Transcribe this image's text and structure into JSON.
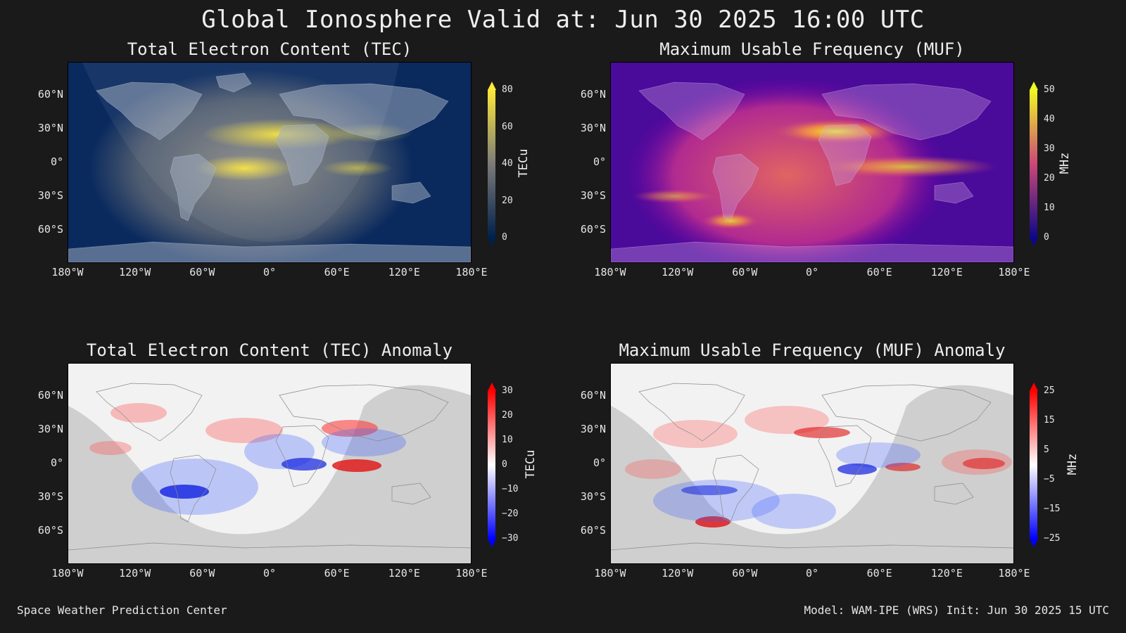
{
  "title": "Global Ionosphere Valid at: Jun 30 2025 16:00 UTC",
  "lat_ticks": [
    "60°N",
    "30°N",
    "0°",
    "30°S",
    "60°S"
  ],
  "lon_ticks": [
    "180°W",
    "120°W",
    "60°W",
    "0°",
    "60°E",
    "120°E",
    "180°E"
  ],
  "panels": {
    "tec": {
      "title": "Total Electron Content (TEC)",
      "unit": "TECu",
      "ticks": [
        "80",
        "60",
        "40",
        "20",
        "0"
      ],
      "range": [
        0,
        80
      ],
      "colors": {
        "low": "#00204c",
        "mid": "#7c7b78",
        "high": "#fee838"
      }
    },
    "muf": {
      "title": "Maximum Usable Frequency (MUF)",
      "unit": "MHz",
      "ticks": [
        "50",
        "40",
        "30",
        "20",
        "10",
        "0"
      ],
      "range": [
        0,
        50
      ],
      "colors": {
        "low": "#0d0887",
        "mid": "#cc4778",
        "high": "#f0f921"
      }
    },
    "tec_anomaly": {
      "title": "Total Electron Content (TEC) Anomaly",
      "unit": "TECu",
      "ticks": [
        "30",
        "20",
        "10",
        "0",
        "−10",
        "−20",
        "−30"
      ],
      "range": [
        -30,
        30
      ],
      "colors": {
        "low": "#0000ff",
        "mid": "#ffffff",
        "high": "#ff0000"
      }
    },
    "muf_anomaly": {
      "title": "Maximum Usable Frequency (MUF) Anomaly",
      "unit": "MHz",
      "ticks": [
        "25",
        "15",
        "5",
        "−5",
        "−15",
        "−25"
      ],
      "range": [
        -25,
        25
      ],
      "colors": {
        "low": "#0000ff",
        "mid": "#ffffff",
        "high": "#ff0000"
      }
    }
  },
  "footer": {
    "left": "Space Weather Prediction Center",
    "right": "Model: WAM-IPE (WRS) Init: Jun 30 2025 15 UTC"
  }
}
